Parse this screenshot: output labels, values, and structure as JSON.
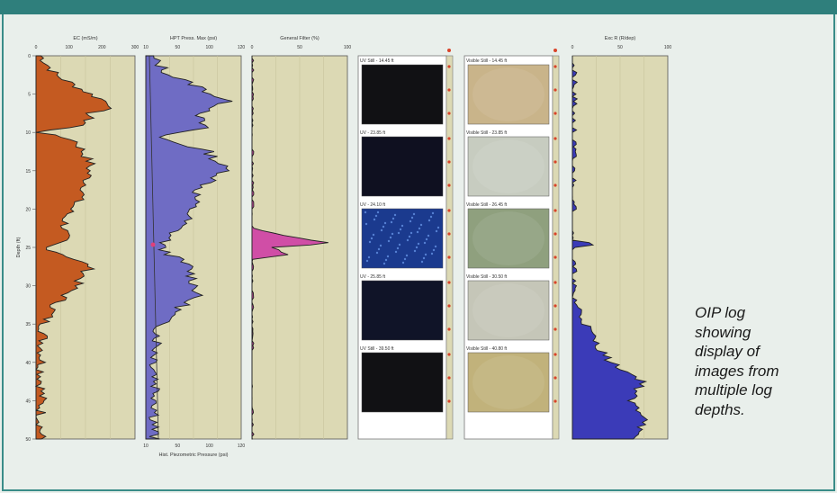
{
  "caption": [
    "OIP log",
    "showing",
    "display of",
    "images from",
    "multiple log",
    "depths."
  ],
  "tracks": [
    {
      "title": "EC (mS/m)",
      "ticks": [
        "0",
        "100",
        "200",
        "300"
      ],
      "fill": "#c45a21"
    },
    {
      "title": "HPT Press. Max (psi)",
      "ticks": [
        "10",
        "50",
        "100",
        "120"
      ],
      "fill": "#6f6cc4",
      "bottom_ticks": [
        "10",
        "50",
        "100",
        "120"
      ],
      "bottom_label": "Hist. Piezometric Pressure (psi)"
    },
    {
      "title": "General Filter (%)",
      "ticks": [
        "0",
        "50",
        "100"
      ],
      "fill": "#d04ea6"
    },
    {
      "title": "Exc R (R/dep)",
      "ticks": [
        "0",
        "50",
        "100"
      ],
      "fill": "#3b3bb8"
    }
  ],
  "depth_axis": {
    "label": "Depth (ft)",
    "ticks": [
      "0",
      "5",
      "10",
      "15",
      "20",
      "25",
      "30",
      "35",
      "40",
      "45",
      "50"
    ]
  },
  "uv_images": [
    "UV Still - 14.45 ft",
    "UV - 23.85 ft",
    "UV - 24.10 ft",
    "UV - 25.85 ft",
    "UV Still - 39.50 ft"
  ],
  "visible_images": [
    "Visible Still - 14.45 ft",
    "Visible Still - 23.85 ft",
    "Visible Still - 26.45 ft",
    "Visible Still - 30.50 ft",
    "Visible Still - 40.80 ft"
  ],
  "colors": {
    "panel": "#dcd9b4",
    "border": "#3a8c88",
    "topbar": "#2f7f7c"
  }
}
